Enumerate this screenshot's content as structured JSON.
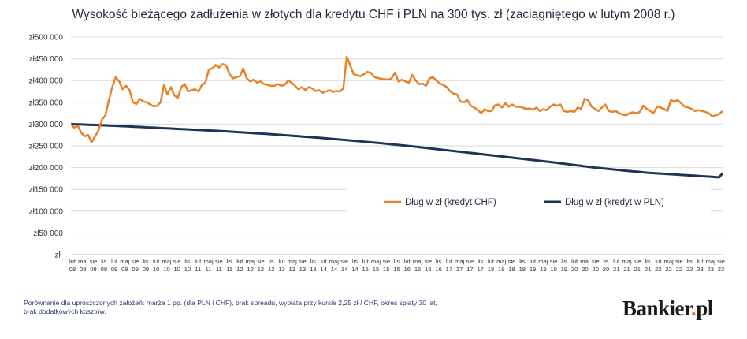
{
  "chart_data": {
    "type": "line",
    "title": "Wysokość bieżącego zadłużenia w złotych dla kredytu CHF i PLN na 300 tys. zł (zaciągniętego w lutym 2008 r.)",
    "xlabel": "",
    "ylabel": "",
    "ylim": [
      0,
      500000
    ],
    "yticks": [
      0,
      50000,
      100000,
      150000,
      200000,
      250000,
      300000,
      350000,
      400000,
      450000,
      500000
    ],
    "ytick_labels": [
      "zł-",
      "zł50 000",
      "zł100 000",
      "zł150 000",
      "zł200 000",
      "zł250 000",
      "zł300 000",
      "zł350 000",
      "zł400 000",
      "zł450 000",
      "zł500 000"
    ],
    "x_tick_labels": [
      {
        "top": "lut",
        "bottom": "08"
      },
      {
        "top": "maj",
        "bottom": "08"
      },
      {
        "top": "sie",
        "bottom": "08"
      },
      {
        "top": "lis",
        "bottom": "08"
      },
      {
        "top": "lut",
        "bottom": "09"
      },
      {
        "top": "maj",
        "bottom": "09"
      },
      {
        "top": "sie",
        "bottom": "09"
      },
      {
        "top": "lis",
        "bottom": "09"
      },
      {
        "top": "lut",
        "bottom": "10"
      },
      {
        "top": "maj",
        "bottom": "10"
      },
      {
        "top": "sie",
        "bottom": "10"
      },
      {
        "top": "lis",
        "bottom": "10"
      },
      {
        "top": "lut",
        "bottom": "11"
      },
      {
        "top": "maj",
        "bottom": "11"
      },
      {
        "top": "sie",
        "bottom": "11"
      },
      {
        "top": "lis",
        "bottom": "11"
      },
      {
        "top": "lut",
        "bottom": "12"
      },
      {
        "top": "maj",
        "bottom": "12"
      },
      {
        "top": "sie",
        "bottom": "12"
      },
      {
        "top": "lis",
        "bottom": "12"
      },
      {
        "top": "lut",
        "bottom": "13"
      },
      {
        "top": "maj",
        "bottom": "13"
      },
      {
        "top": "sie",
        "bottom": "13"
      },
      {
        "top": "lis",
        "bottom": "13"
      },
      {
        "top": "lut",
        "bottom": "14"
      },
      {
        "top": "maj",
        "bottom": "14"
      },
      {
        "top": "sie",
        "bottom": "14"
      },
      {
        "top": "lis",
        "bottom": "14"
      },
      {
        "top": "lut",
        "bottom": "15"
      },
      {
        "top": "maj",
        "bottom": "15"
      },
      {
        "top": "sie",
        "bottom": "15"
      },
      {
        "top": "lis",
        "bottom": "15"
      },
      {
        "top": "lut",
        "bottom": "16"
      },
      {
        "top": "maj",
        "bottom": "16"
      },
      {
        "top": "sie",
        "bottom": "16"
      },
      {
        "top": "lis",
        "bottom": "16"
      },
      {
        "top": "lut",
        "bottom": "17"
      },
      {
        "top": "maj",
        "bottom": "17"
      },
      {
        "top": "sie",
        "bottom": "17"
      },
      {
        "top": "lis",
        "bottom": "17"
      },
      {
        "top": "lut",
        "bottom": "18"
      },
      {
        "top": "maj",
        "bottom": "18"
      },
      {
        "top": "sie",
        "bottom": "18"
      },
      {
        "top": "lis",
        "bottom": "18"
      },
      {
        "top": "lut",
        "bottom": "19"
      },
      {
        "top": "maj",
        "bottom": "19"
      },
      {
        "top": "sie",
        "bottom": "19"
      },
      {
        "top": "lis",
        "bottom": "19"
      },
      {
        "top": "lut",
        "bottom": "20"
      },
      {
        "top": "maj",
        "bottom": "20"
      },
      {
        "top": "sie",
        "bottom": "20"
      },
      {
        "top": "lis",
        "bottom": "20"
      },
      {
        "top": "lut",
        "bottom": "21"
      },
      {
        "top": "maj",
        "bottom": "21"
      },
      {
        "top": "sie",
        "bottom": "21"
      },
      {
        "top": "lis",
        "bottom": "21"
      },
      {
        "top": "lut",
        "bottom": "22"
      },
      {
        "top": "maj",
        "bottom": "22"
      },
      {
        "top": "sie",
        "bottom": "22"
      },
      {
        "top": "lis",
        "bottom": "22"
      },
      {
        "top": "lut",
        "bottom": "23"
      },
      {
        "top": "maj",
        "bottom": "23"
      },
      {
        "top": "sie",
        "bottom": "23"
      }
    ],
    "grid": true,
    "legend_position": "center-right",
    "series": [
      {
        "name": "Dług w zł (kredyt CHF)",
        "color": "#e8822a",
        "values": [
          300000,
          292000,
          296000,
          280000,
          272000,
          275000,
          258000,
          272000,
          285000,
          310000,
          320000,
          355000,
          385000,
          408000,
          398000,
          380000,
          388000,
          378000,
          350000,
          346000,
          358000,
          352000,
          350000,
          345000,
          341000,
          342000,
          350000,
          390000,
          368000,
          385000,
          366000,
          360000,
          385000,
          392000,
          375000,
          378000,
          380000,
          375000,
          390000,
          395000,
          425000,
          428000,
          436000,
          430000,
          438000,
          435000,
          415000,
          405000,
          408000,
          410000,
          428000,
          405000,
          398000,
          402000,
          395000,
          398000,
          392000,
          390000,
          388000,
          388000,
          392000,
          388000,
          390000,
          400000,
          395000,
          388000,
          380000,
          385000,
          378000,
          385000,
          382000,
          376000,
          378000,
          372000,
          375000,
          378000,
          374000,
          376000,
          375000,
          382000,
          455000,
          435000,
          415000,
          412000,
          410000,
          415000,
          420000,
          418000,
          408000,
          406000,
          404000,
          403000,
          402000,
          405000,
          418000,
          398000,
          402000,
          398000,
          395000,
          413000,
          400000,
          392000,
          393000,
          388000,
          405000,
          408000,
          400000,
          393000,
          390000,
          385000,
          375000,
          370000,
          368000,
          352000,
          350000,
          355000,
          342000,
          338000,
          332000,
          325000,
          334000,
          330000,
          330000,
          343000,
          345000,
          338000,
          348000,
          340000,
          345000,
          340000,
          340000,
          338000,
          335000,
          336000,
          333000,
          338000,
          330000,
          334000,
          332000,
          340000,
          345000,
          342000,
          345000,
          330000,
          328000,
          330000,
          328000,
          338000,
          335000,
          358000,
          355000,
          340000,
          335000,
          330000,
          338000,
          345000,
          330000,
          328000,
          330000,
          325000,
          322000,
          320000,
          325000,
          327000,
          325000,
          328000,
          342000,
          335000,
          330000,
          325000,
          340000,
          338000,
          335000,
          330000,
          355000,
          352000,
          355000,
          348000,
          340000,
          338000,
          335000,
          330000,
          332000,
          330000,
          328000,
          325000,
          318000,
          320000,
          323000,
          330000
        ]
      },
      {
        "name": "Dług w zł (kredyt w PLN)",
        "color": "#1f3357",
        "values": [
          300000,
          299700,
          299400,
          299100,
          298800,
          298500,
          298200,
          297900,
          297600,
          297300,
          297000,
          296700,
          296400,
          296100,
          295700,
          295400,
          295000,
          294600,
          294200,
          293800,
          293400,
          293000,
          292600,
          292200,
          291800,
          291400,
          291000,
          290600,
          290200,
          289800,
          289400,
          289000,
          288600,
          288200,
          287800,
          287400,
          287000,
          286600,
          286200,
          285800,
          285400,
          285000,
          284600,
          284200,
          283800,
          283300,
          282800,
          282300,
          281800,
          281300,
          280800,
          280300,
          279800,
          279300,
          278800,
          278300,
          277800,
          277300,
          276800,
          276300,
          275700,
          275100,
          274500,
          273900,
          273300,
          272700,
          272100,
          271500,
          270900,
          270300,
          269700,
          269100,
          268500,
          267900,
          267300,
          266600,
          265900,
          265200,
          264500,
          263800,
          263100,
          262400,
          261700,
          261000,
          260300,
          259600,
          258900,
          258200,
          257500,
          256800,
          256000,
          255200,
          254400,
          253600,
          252800,
          252000,
          251200,
          250400,
          249600,
          248800,
          248000,
          247100,
          246200,
          245300,
          244400,
          243500,
          242600,
          241700,
          240800,
          239900,
          239000,
          238100,
          237200,
          236300,
          235400,
          234500,
          233600,
          232700,
          231800,
          230900,
          230000,
          229100,
          228200,
          227300,
          226400,
          225500,
          224600,
          223700,
          222800,
          221900,
          221000,
          220100,
          219200,
          218300,
          217400,
          216500,
          215600,
          214700,
          213800,
          212900,
          212000,
          211000,
          210000,
          209000,
          208000,
          207000,
          206000,
          205000,
          204000,
          203000,
          202000,
          201000,
          200000,
          199200,
          198400,
          197600,
          196800,
          196000,
          195200,
          194400,
          193600,
          192800,
          192000,
          191300,
          190600,
          189900,
          189200,
          188500,
          187800,
          187300,
          186800,
          186300,
          185800,
          185300,
          184800,
          184300,
          183800,
          183300,
          182800,
          182300,
          181800,
          181300,
          180800,
          180300,
          179800,
          179300,
          178800,
          178300,
          177800,
          187000
        ]
      }
    ]
  },
  "footnote": {
    "line1": "Porównanie dla uproszczonych założeń: marża 1 pp. (dla PLN i CHF), brak spreadu, wypłata przy kursie 2,25 zł / CHF, okres spłaty 30 lat,",
    "line2": "brak dodatkowych kosztów."
  },
  "logo": {
    "text": "Bankier",
    "suffix": "pl"
  }
}
